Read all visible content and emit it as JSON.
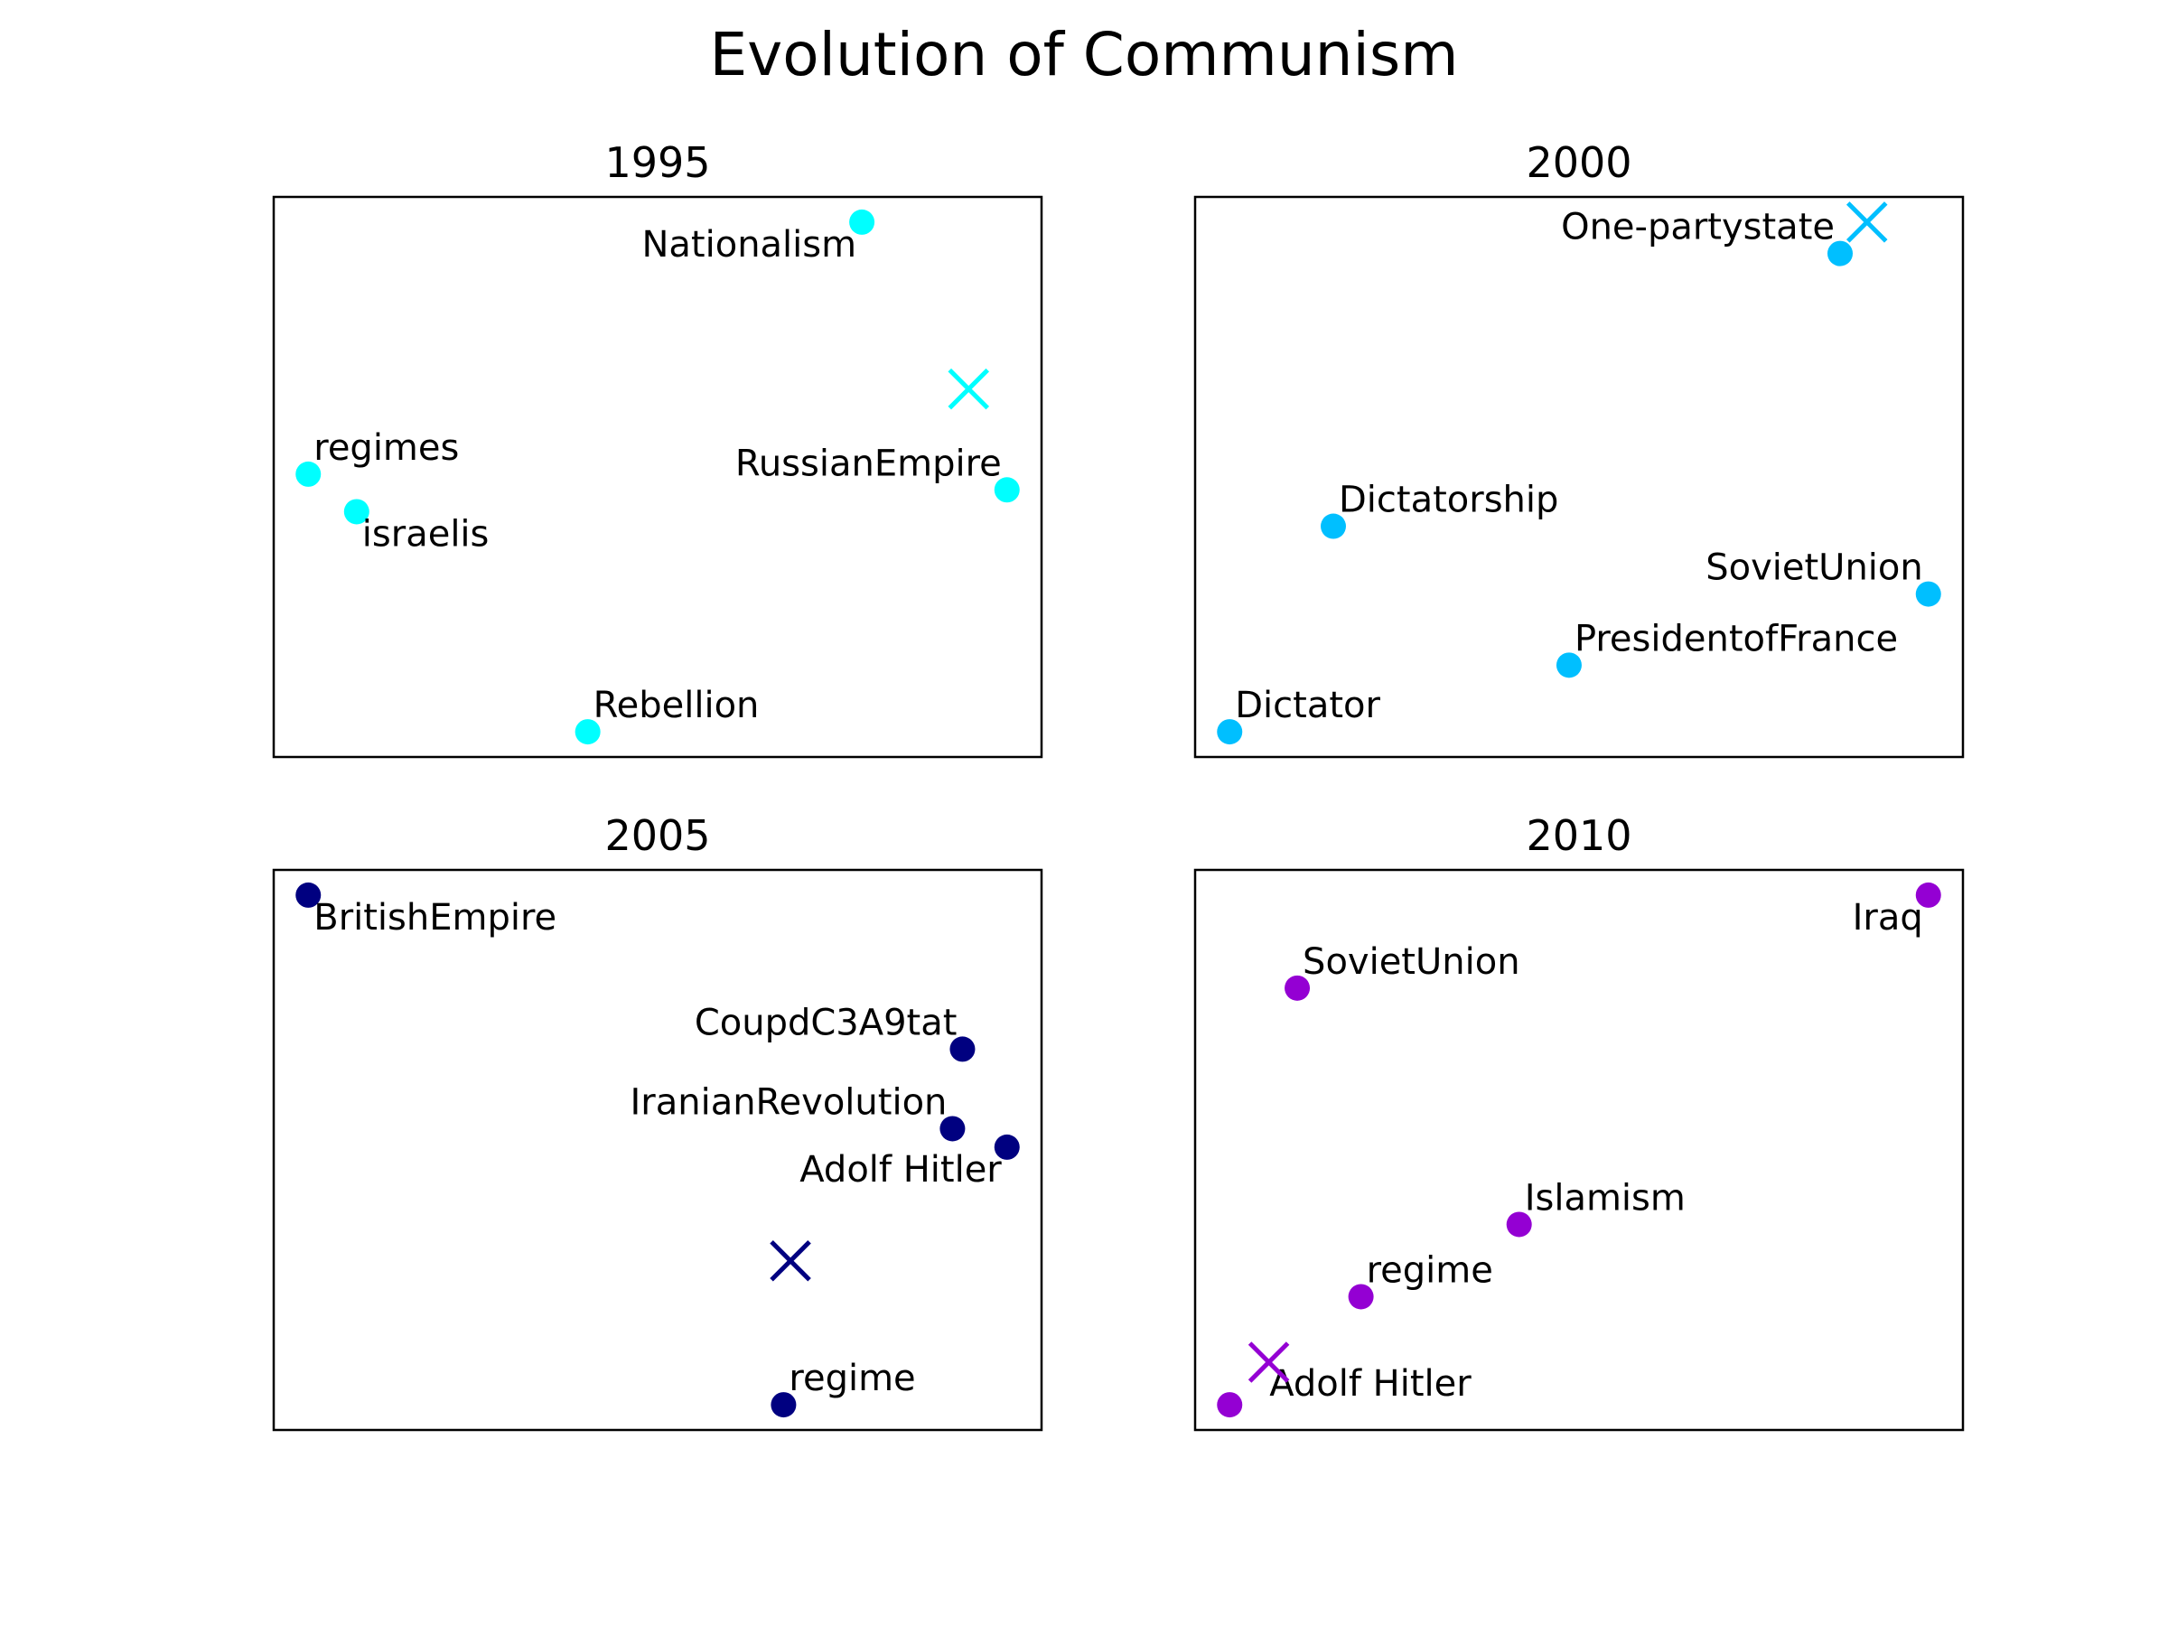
{
  "title": "Evolution of Communism",
  "chart_data": [
    {
      "type": "scatter",
      "title": "1995",
      "color": "#00FFFF",
      "xlim": [
        0,
        100
      ],
      "ylim": [
        0,
        100
      ],
      "points": [
        {
          "label": "Nationalism",
          "x": 76.6,
          "y": 95.5,
          "anchor": "below-left"
        },
        {
          "label": "regimes",
          "x": 4.5,
          "y": 50.5,
          "anchor": "above-right"
        },
        {
          "label": "israelis",
          "x": 10.8,
          "y": 43.8,
          "anchor": "below-right"
        },
        {
          "label": "RussianEmpire",
          "x": 95.5,
          "y": 47.7,
          "anchor": "above-left"
        },
        {
          "label": "Rebellion",
          "x": 40.9,
          "y": 4.5,
          "anchor": "above-right"
        }
      ],
      "centroid": {
        "x": 90.5,
        "y": 65.7
      }
    },
    {
      "type": "scatter",
      "title": "2000",
      "color": "#00BFFF",
      "xlim": [
        0,
        100
      ],
      "ylim": [
        0,
        100
      ],
      "points": [
        {
          "label": "One-partystate",
          "x": 84.0,
          "y": 89.9,
          "anchor": "above-left"
        },
        {
          "label": "Dictatorship",
          "x": 18.0,
          "y": 41.2,
          "anchor": "above-right"
        },
        {
          "label": "SovietUnion",
          "x": 95.5,
          "y": 29.1,
          "anchor": "above-left"
        },
        {
          "label": "PresidentofFrance",
          "x": 48.7,
          "y": 16.4,
          "anchor": "above-right"
        },
        {
          "label": "Dictator",
          "x": 4.5,
          "y": 4.5,
          "anchor": "above-right"
        }
      ],
      "centroid": {
        "x": 87.5,
        "y": 95.5
      }
    },
    {
      "type": "scatter",
      "title": "2005",
      "color": "#000080",
      "xlim": [
        0,
        100
      ],
      "ylim": [
        0,
        100
      ],
      "points": [
        {
          "label": "BritishEmpire",
          "x": 4.5,
          "y": 95.5,
          "anchor": "below-right"
        },
        {
          "label": "CoupdC3A9tat",
          "x": 89.7,
          "y": 68.0,
          "anchor": "above-left"
        },
        {
          "label": "IranianRevolution",
          "x": 88.4,
          "y": 53.8,
          "anchor": "above-left"
        },
        {
          "label": "Adolf Hitler",
          "x": 95.5,
          "y": 50.5,
          "anchor": "below-left"
        },
        {
          "label": "regime",
          "x": 66.4,
          "y": 4.5,
          "anchor": "above-right"
        }
      ],
      "centroid": {
        "x": 67.3,
        "y": 30.2
      }
    },
    {
      "type": "scatter",
      "title": "2010",
      "color": "#9400D3",
      "xlim": [
        0,
        100
      ],
      "ylim": [
        0,
        100
      ],
      "points": [
        {
          "label": "Iraq",
          "x": 95.5,
          "y": 95.5,
          "anchor": "below-left"
        },
        {
          "label": "SovietUnion",
          "x": 13.3,
          "y": 78.9,
          "anchor": "above-right"
        },
        {
          "label": "Islamism",
          "x": 42.2,
          "y": 36.7,
          "anchor": "above-right"
        },
        {
          "label": "regime",
          "x": 21.6,
          "y": 23.8,
          "anchor": "above-right"
        },
        {
          "label": "Adolf Hitler",
          "x": 4.5,
          "y": 4.5,
          "anchor": "above-right-far"
        }
      ],
      "centroid": {
        "x": 9.6,
        "y": 12.1
      }
    }
  ]
}
